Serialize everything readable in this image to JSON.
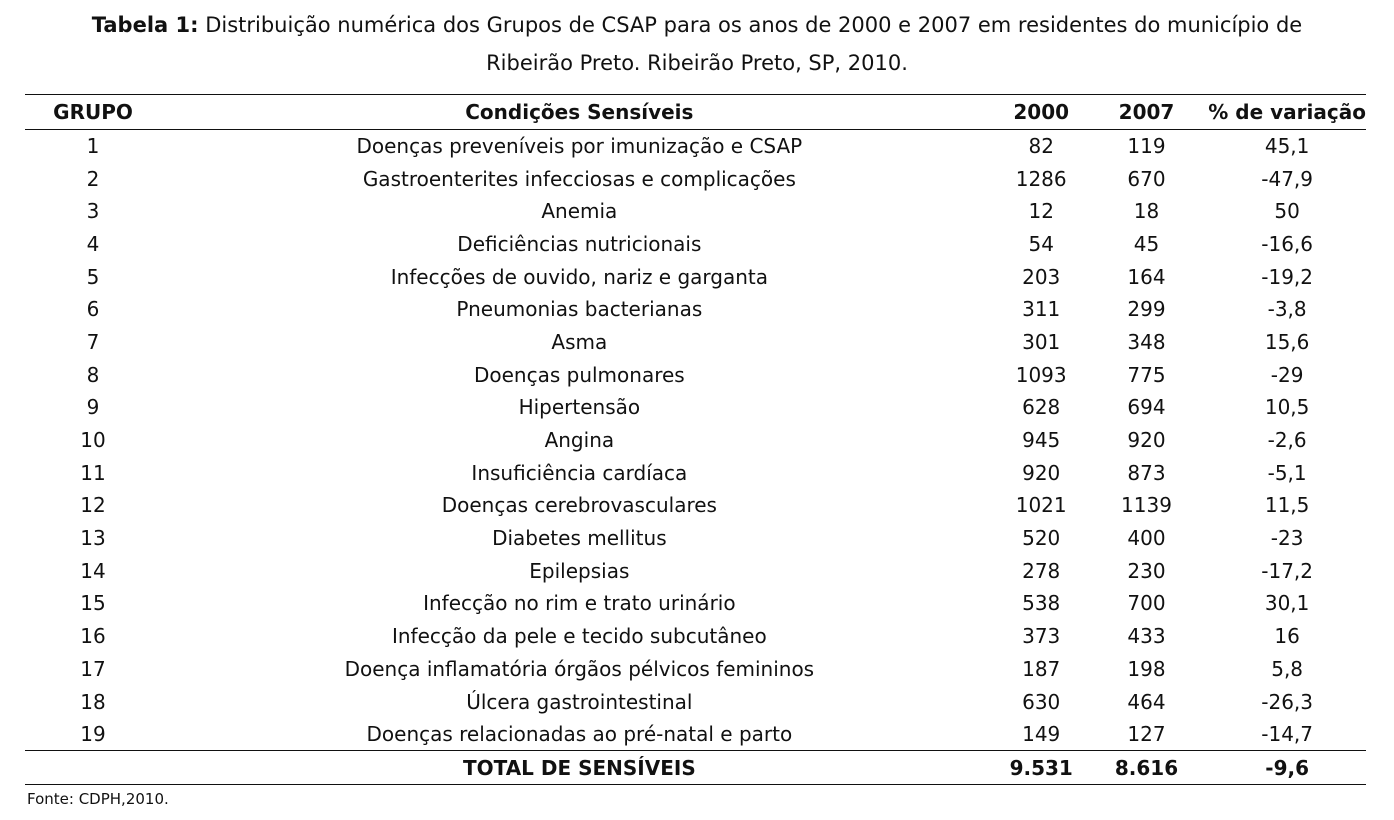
{
  "caption": {
    "label": "Tabela 1:",
    "text": " Distribuição numérica dos Grupos de CSAP para os anos de 2000 e 2007 em residentes do município de",
    "line2": "Ribeirão Preto. Ribeirão Preto, SP, 2010."
  },
  "table": {
    "headers": [
      "GRUPO",
      "Condições Sensíveis",
      "2000",
      "2007",
      "% de variação"
    ],
    "rows": [
      [
        "1",
        "Doenças preveníveis por imunização e CSAP",
        "82",
        "119",
        "45,1"
      ],
      [
        "2",
        "Gastroenterites infecciosas e complicações",
        "1286",
        "670",
        "-47,9"
      ],
      [
        "3",
        "Anemia",
        "12",
        "18",
        "50"
      ],
      [
        "4",
        "Deficiências nutricionais",
        "54",
        "45",
        "-16,6"
      ],
      [
        "5",
        "Infecções de ouvido, nariz e garganta",
        "203",
        "164",
        "-19,2"
      ],
      [
        "6",
        "Pneumonias bacterianas",
        "311",
        "299",
        "-3,8"
      ],
      [
        "7",
        "Asma",
        "301",
        "348",
        "15,6"
      ],
      [
        "8",
        "Doenças pulmonares",
        "1093",
        "775",
        "-29"
      ],
      [
        "9",
        "Hipertensão",
        "628",
        "694",
        "10,5"
      ],
      [
        "10",
        "Angina",
        "945",
        "920",
        "-2,6"
      ],
      [
        "11",
        "Insuficiência cardíaca",
        "920",
        "873",
        "-5,1"
      ],
      [
        "12",
        "Doenças cerebrovasculares",
        "1021",
        "1139",
        "11,5"
      ],
      [
        "13",
        "Diabetes mellitus",
        "520",
        "400",
        "-23"
      ],
      [
        "14",
        "Epilepsias",
        "278",
        "230",
        "-17,2"
      ],
      [
        "15",
        "Infecção no rim e trato urinário",
        "538",
        "700",
        "30,1"
      ],
      [
        "16",
        "Infecção da pele e tecido subcutâneo",
        "373",
        "433",
        "16"
      ],
      [
        "17",
        "Doença inflamatória órgãos pélvicos femininos",
        "187",
        "198",
        "5,8"
      ],
      [
        "18",
        "Úlcera gastrointestinal",
        "630",
        "464",
        "-26,3"
      ],
      [
        "19",
        "Doenças relacionadas ao pré-natal e parto",
        "149",
        "127",
        "-14,7"
      ]
    ],
    "total": {
      "label": "TOTAL DE SENSÍVEIS",
      "y2000": "9.531",
      "y2007": "8.616",
      "variation": "-9,6"
    }
  },
  "source": "Fonte: CDPH,2010."
}
